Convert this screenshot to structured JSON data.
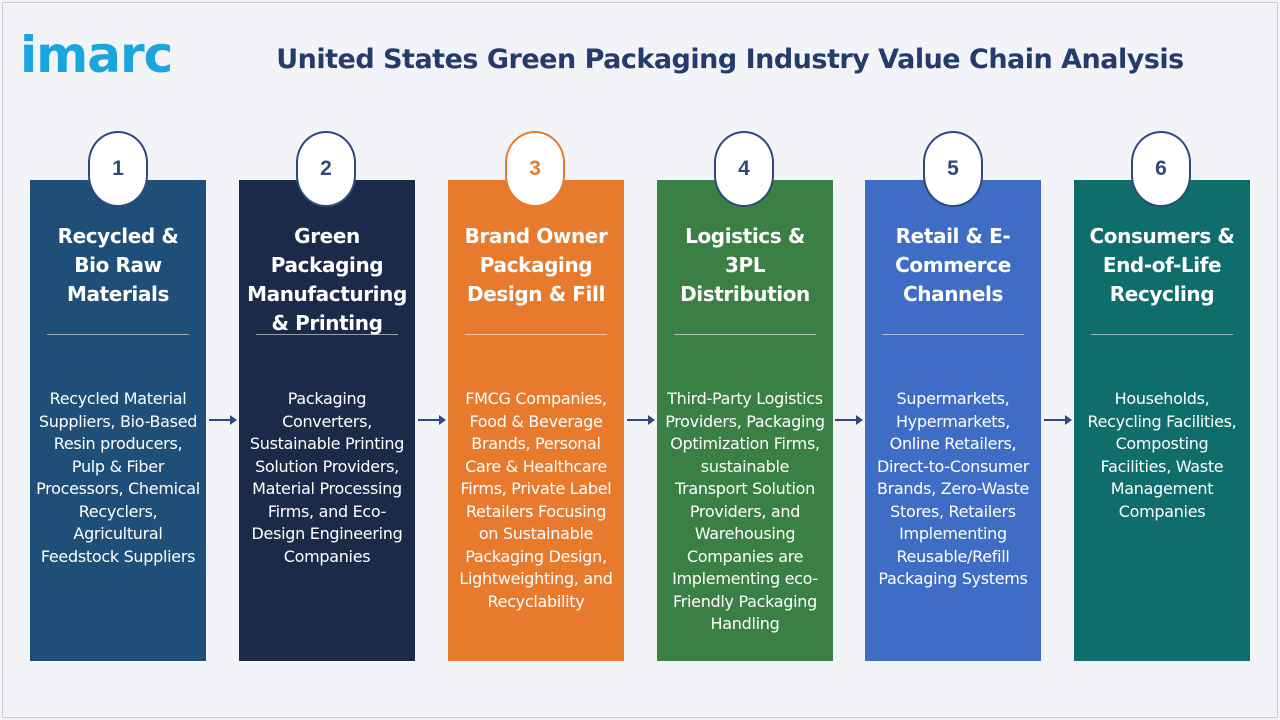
{
  "logo": "imarc",
  "title": "United States Green Packaging Industry Value Chain Analysis",
  "colors": {
    "step1": "#1f4e79",
    "step2": "#1b2a49",
    "step3": "#e87a2e",
    "step4": "#3a7f44",
    "step5": "#3f6cc4",
    "step6": "#0f6d6b",
    "arrow": "#2d4a7a"
  },
  "steps": [
    {
      "number": "1",
      "title": "Recycled & Bio Raw Materials",
      "body": "Recycled Material Suppliers, Bio-Based Resin producers, Pulp & Fiber Processors, Chemical Recyclers, Agricultural Feedstock Suppliers"
    },
    {
      "number": "2",
      "title": "Green Packaging Manufacturing & Printing",
      "body": "Packaging Converters, Sustainable Printing Solution Providers, Material Processing Firms, and Eco-Design Engineering Companies"
    },
    {
      "number": "3",
      "title": "Brand Owner Packaging Design & Fill",
      "body": "FMCG Companies, Food & Beverage Brands, Personal Care & Healthcare Firms, Private Label Retailers Focusing on Sustainable Packaging Design, Lightweighting, and Recyclability"
    },
    {
      "number": "4",
      "title": "Logistics & 3PL Distribution",
      "body": "Third-Party Logistics Providers, Packaging Optimization Firms, sustainable Transport Solution Providers, and Warehousing Companies are Implementing eco-Friendly Packaging Handling"
    },
    {
      "number": "5",
      "title": "Retail & E-Commerce Channels",
      "body": "Supermarkets, Hypermarkets, Online Retailers, Direct-to-Consumer Brands, Zero-Waste Stores, Retailers Implementing Reusable/Refill Packaging Systems"
    },
    {
      "number": "6",
      "title": "Consumers & End-of-Life Recycling",
      "body": "Households, Recycling Facilities, Composting Facilities, Waste Management Companies"
    }
  ]
}
